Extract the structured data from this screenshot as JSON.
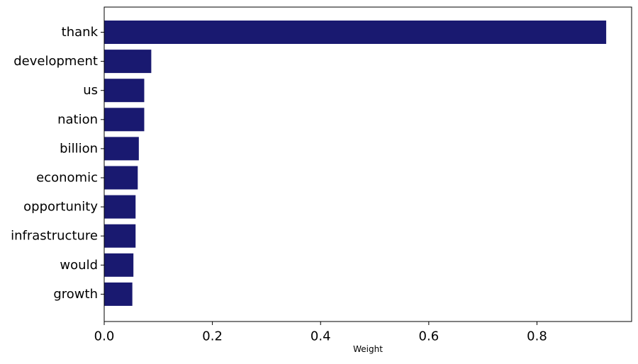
{
  "chart_data": {
    "type": "bar",
    "orientation": "horizontal",
    "categories": [
      "thank",
      "development",
      "us",
      "nation",
      "billion",
      "economic",
      "opportunity",
      "infrastructure",
      "would",
      "growth"
    ],
    "values": [
      0.928,
      0.087,
      0.074,
      0.074,
      0.064,
      0.062,
      0.058,
      0.058,
      0.054,
      0.052
    ],
    "xlabel": "Weight",
    "ylabel": "",
    "xlim": [
      0,
      0.975
    ],
    "xticks": [
      0.0,
      0.2,
      0.4,
      0.6,
      0.8
    ],
    "xtick_labels": [
      "0.0",
      "0.2",
      "0.4",
      "0.6",
      "0.8"
    ],
    "grid": false,
    "bar_color": "#191970"
  }
}
